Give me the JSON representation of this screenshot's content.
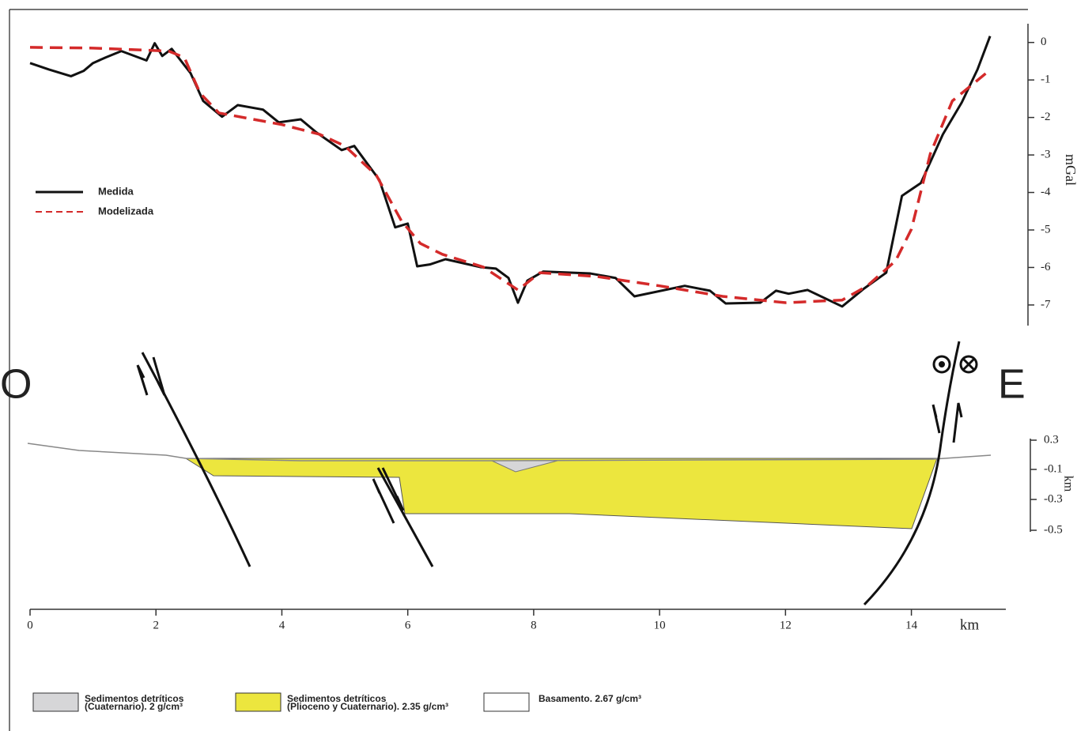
{
  "chart_data": {
    "type": "line",
    "y_label": "mGal",
    "x_label": "km",
    "xlim": [
      0,
      15.5
    ],
    "xticks": [
      0,
      2,
      4,
      6,
      8,
      10,
      12,
      14
    ],
    "ylim": [
      -7.55,
      0.5
    ],
    "yticks": [
      0,
      -1,
      -2,
      -3,
      -4,
      -5,
      -6,
      -7
    ],
    "legend": "left",
    "series": [
      {
        "name": "Medida",
        "color": "#111111",
        "dash": false,
        "x": [
          0,
          0.3,
          0.65,
          0.85,
          1.0,
          1.2,
          1.45,
          1.85,
          1.98,
          2.1,
          2.25,
          2.55,
          2.75,
          3.05,
          3.3,
          3.7,
          3.95,
          4.3,
          4.55,
          4.95,
          5.15,
          5.55,
          5.8,
          6.0,
          6.15,
          6.35,
          6.6,
          7.15,
          7.4,
          7.6,
          7.75,
          7.9,
          8.15,
          8.9,
          9.3,
          9.6,
          10.4,
          10.8,
          11.05,
          11.6,
          11.85,
          12.05,
          12.35,
          12.9,
          13.25,
          13.6,
          13.85,
          14.15,
          14.5,
          14.8,
          15.05,
          15.25
        ],
        "values": [
          -0.55,
          -0.72,
          -0.9,
          -0.76,
          -0.55,
          -0.4,
          -0.23,
          -0.48,
          -0.02,
          -0.36,
          -0.17,
          -0.82,
          -1.56,
          -1.98,
          -1.67,
          -1.79,
          -2.13,
          -2.05,
          -2.4,
          -2.87,
          -2.76,
          -3.67,
          -4.93,
          -4.83,
          -5.97,
          -5.92,
          -5.78,
          -5.99,
          -6.03,
          -6.28,
          -6.94,
          -6.35,
          -6.11,
          -6.16,
          -6.28,
          -6.77,
          -6.49,
          -6.62,
          -6.96,
          -6.94,
          -6.62,
          -6.7,
          -6.6,
          -7.04,
          -6.56,
          -6.14,
          -4.09,
          -3.75,
          -2.45,
          -1.6,
          -0.72,
          0.17
        ]
      },
      {
        "name": "Modelizada",
        "color": "#d42a2a",
        "dash": true,
        "x": [
          0,
          1.0,
          2.2,
          2.45,
          2.7,
          3.0,
          4.0,
          4.6,
          5.0,
          5.5,
          5.9,
          6.2,
          6.55,
          7.2,
          7.75,
          8.1,
          9.0,
          10.0,
          11.0,
          12.0,
          12.9,
          13.3,
          13.75,
          14.0,
          14.3,
          14.65,
          15.2
        ],
        "values": [
          -0.13,
          -0.15,
          -0.23,
          -0.4,
          -1.35,
          -1.88,
          -2.19,
          -2.45,
          -2.76,
          -3.54,
          -4.76,
          -5.36,
          -5.65,
          -5.99,
          -6.6,
          -6.14,
          -6.24,
          -6.49,
          -6.77,
          -6.94,
          -6.87,
          -6.49,
          -5.82,
          -4.98,
          -2.97,
          -1.56,
          -0.8
        ]
      }
    ]
  },
  "section": {
    "west": "O",
    "east": "E",
    "axis_title": "km",
    "axis_labels": [
      "0.3",
      "-0.1",
      "-0.3",
      "-0.5"
    ]
  },
  "units_legend": [
    {
      "lines": [
        "Sedimentos detríticos",
        "(Cuaternario). 2 g/cm³"
      ],
      "color": "#d6d6d8"
    },
    {
      "lines": [
        "Sedimentos detríticos",
        "(Plioceno y Cuaternario). 2.35 g/cm³"
      ],
      "color": "#ece63e"
    },
    {
      "lines": [
        "Basamento. 2.67 g/cm³"
      ],
      "color": "#ffffff"
    }
  ]
}
